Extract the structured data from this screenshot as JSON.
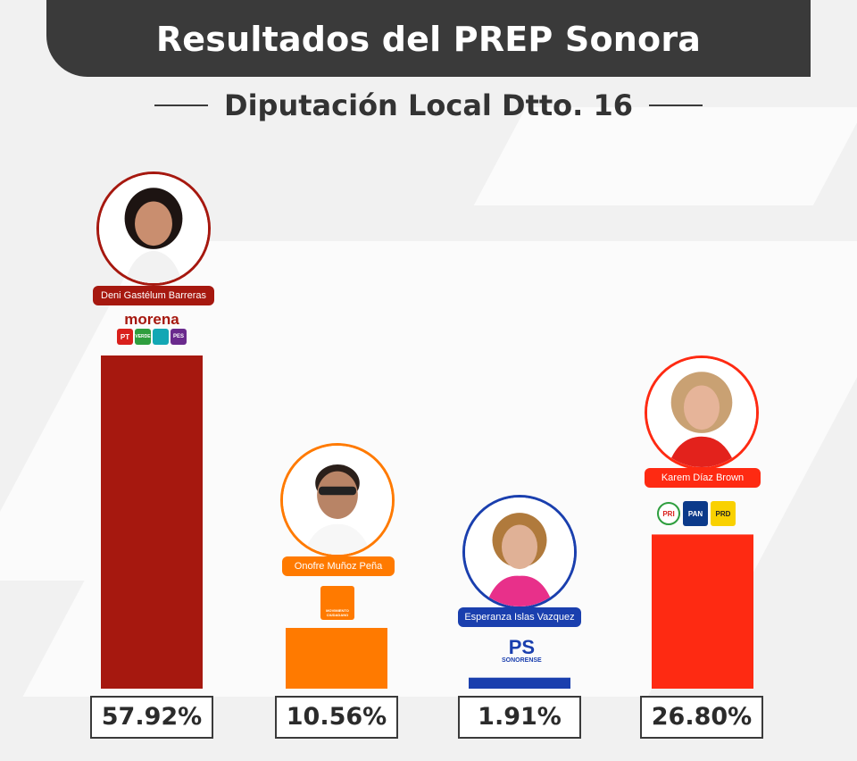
{
  "header": {
    "title": "Resultados del PREP Sonora"
  },
  "subtitle": "Diputación Local Dtto. 16",
  "colors": {
    "header_bg": "#3a3a3a",
    "morena": "#a6180f",
    "mc": "#ff7a00",
    "ps": "#1a3fae",
    "prian": "#fe2a12"
  },
  "candidates": [
    {
      "name": "Deni Gastélum Barreras",
      "party": "morena",
      "party_text": "morena",
      "party_logos": [
        "PT",
        "VERDE",
        "",
        "PES"
      ],
      "percent_label": "57.92%",
      "color": "#a6180f",
      "border": "#a6180f"
    },
    {
      "name": "Onofre Muñoz Peña",
      "party": "MC",
      "party_text": "MOVIMIENTO CIUDADANO",
      "party_logos": [],
      "percent_label": "10.56%",
      "color": "#ff7a00",
      "border": "#ff7a00"
    },
    {
      "name": "Esperanza Islas Vazquez",
      "party": "PS",
      "party_text": "SONORENSE",
      "party_logos": [],
      "percent_label": "1.91%",
      "color": "#1a3fae",
      "border": "#1a3fae"
    },
    {
      "name": "Karem Díaz Brown",
      "party": "PRI-PAN-PRD",
      "party_text": "",
      "party_logos": [
        "PRI",
        "PAN",
        "PRD"
      ],
      "percent_label": "26.80%",
      "color": "#fe2a12",
      "border": "#fe2a12"
    }
  ],
  "chart_data": {
    "type": "bar",
    "categories": [
      "Deni Gastélum Barreras",
      "Onofre Muñoz Peña",
      "Esperanza Islas Vazquez",
      "Karem Díaz Brown"
    ],
    "values": [
      57.92,
      10.56,
      1.91,
      26.8
    ],
    "title": "Resultados del PREP Sonora",
    "subtitle": "Diputación Local Dtto. 16",
    "xlabel": "",
    "ylabel": "",
    "ylim": [
      0,
      57.92
    ],
    "grid": false,
    "legend": "none"
  }
}
